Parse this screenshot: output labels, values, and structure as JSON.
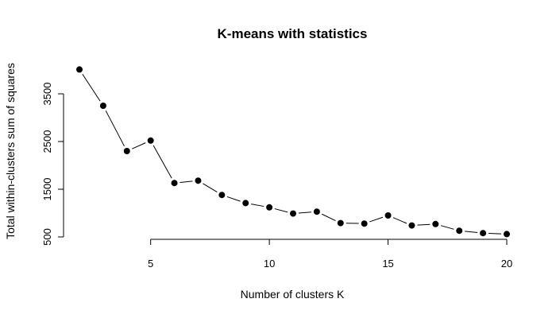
{
  "chart_data": {
    "type": "line",
    "title": "K-means with statistics",
    "xlabel": "Number of clusters K",
    "ylabel": "Total within-clusters sum of squares",
    "xlim": [
      2,
      20
    ],
    "ylim": [
      500,
      4000
    ],
    "x_ticks": [
      5,
      10,
      15,
      20
    ],
    "y_ticks": [
      500,
      1500,
      2500,
      3500
    ],
    "grid": false,
    "legend": "none",
    "series": [
      {
        "x": [
          2,
          3,
          4,
          5,
          6,
          7,
          8,
          9,
          10,
          11,
          12,
          13,
          14,
          15,
          16,
          17,
          18,
          19,
          20
        ],
        "values": [
          4010,
          3250,
          2300,
          2520,
          1630,
          1680,
          1380,
          1210,
          1120,
          990,
          1030,
          790,
          780,
          950,
          740,
          770,
          630,
          580,
          560
        ]
      }
    ]
  }
}
